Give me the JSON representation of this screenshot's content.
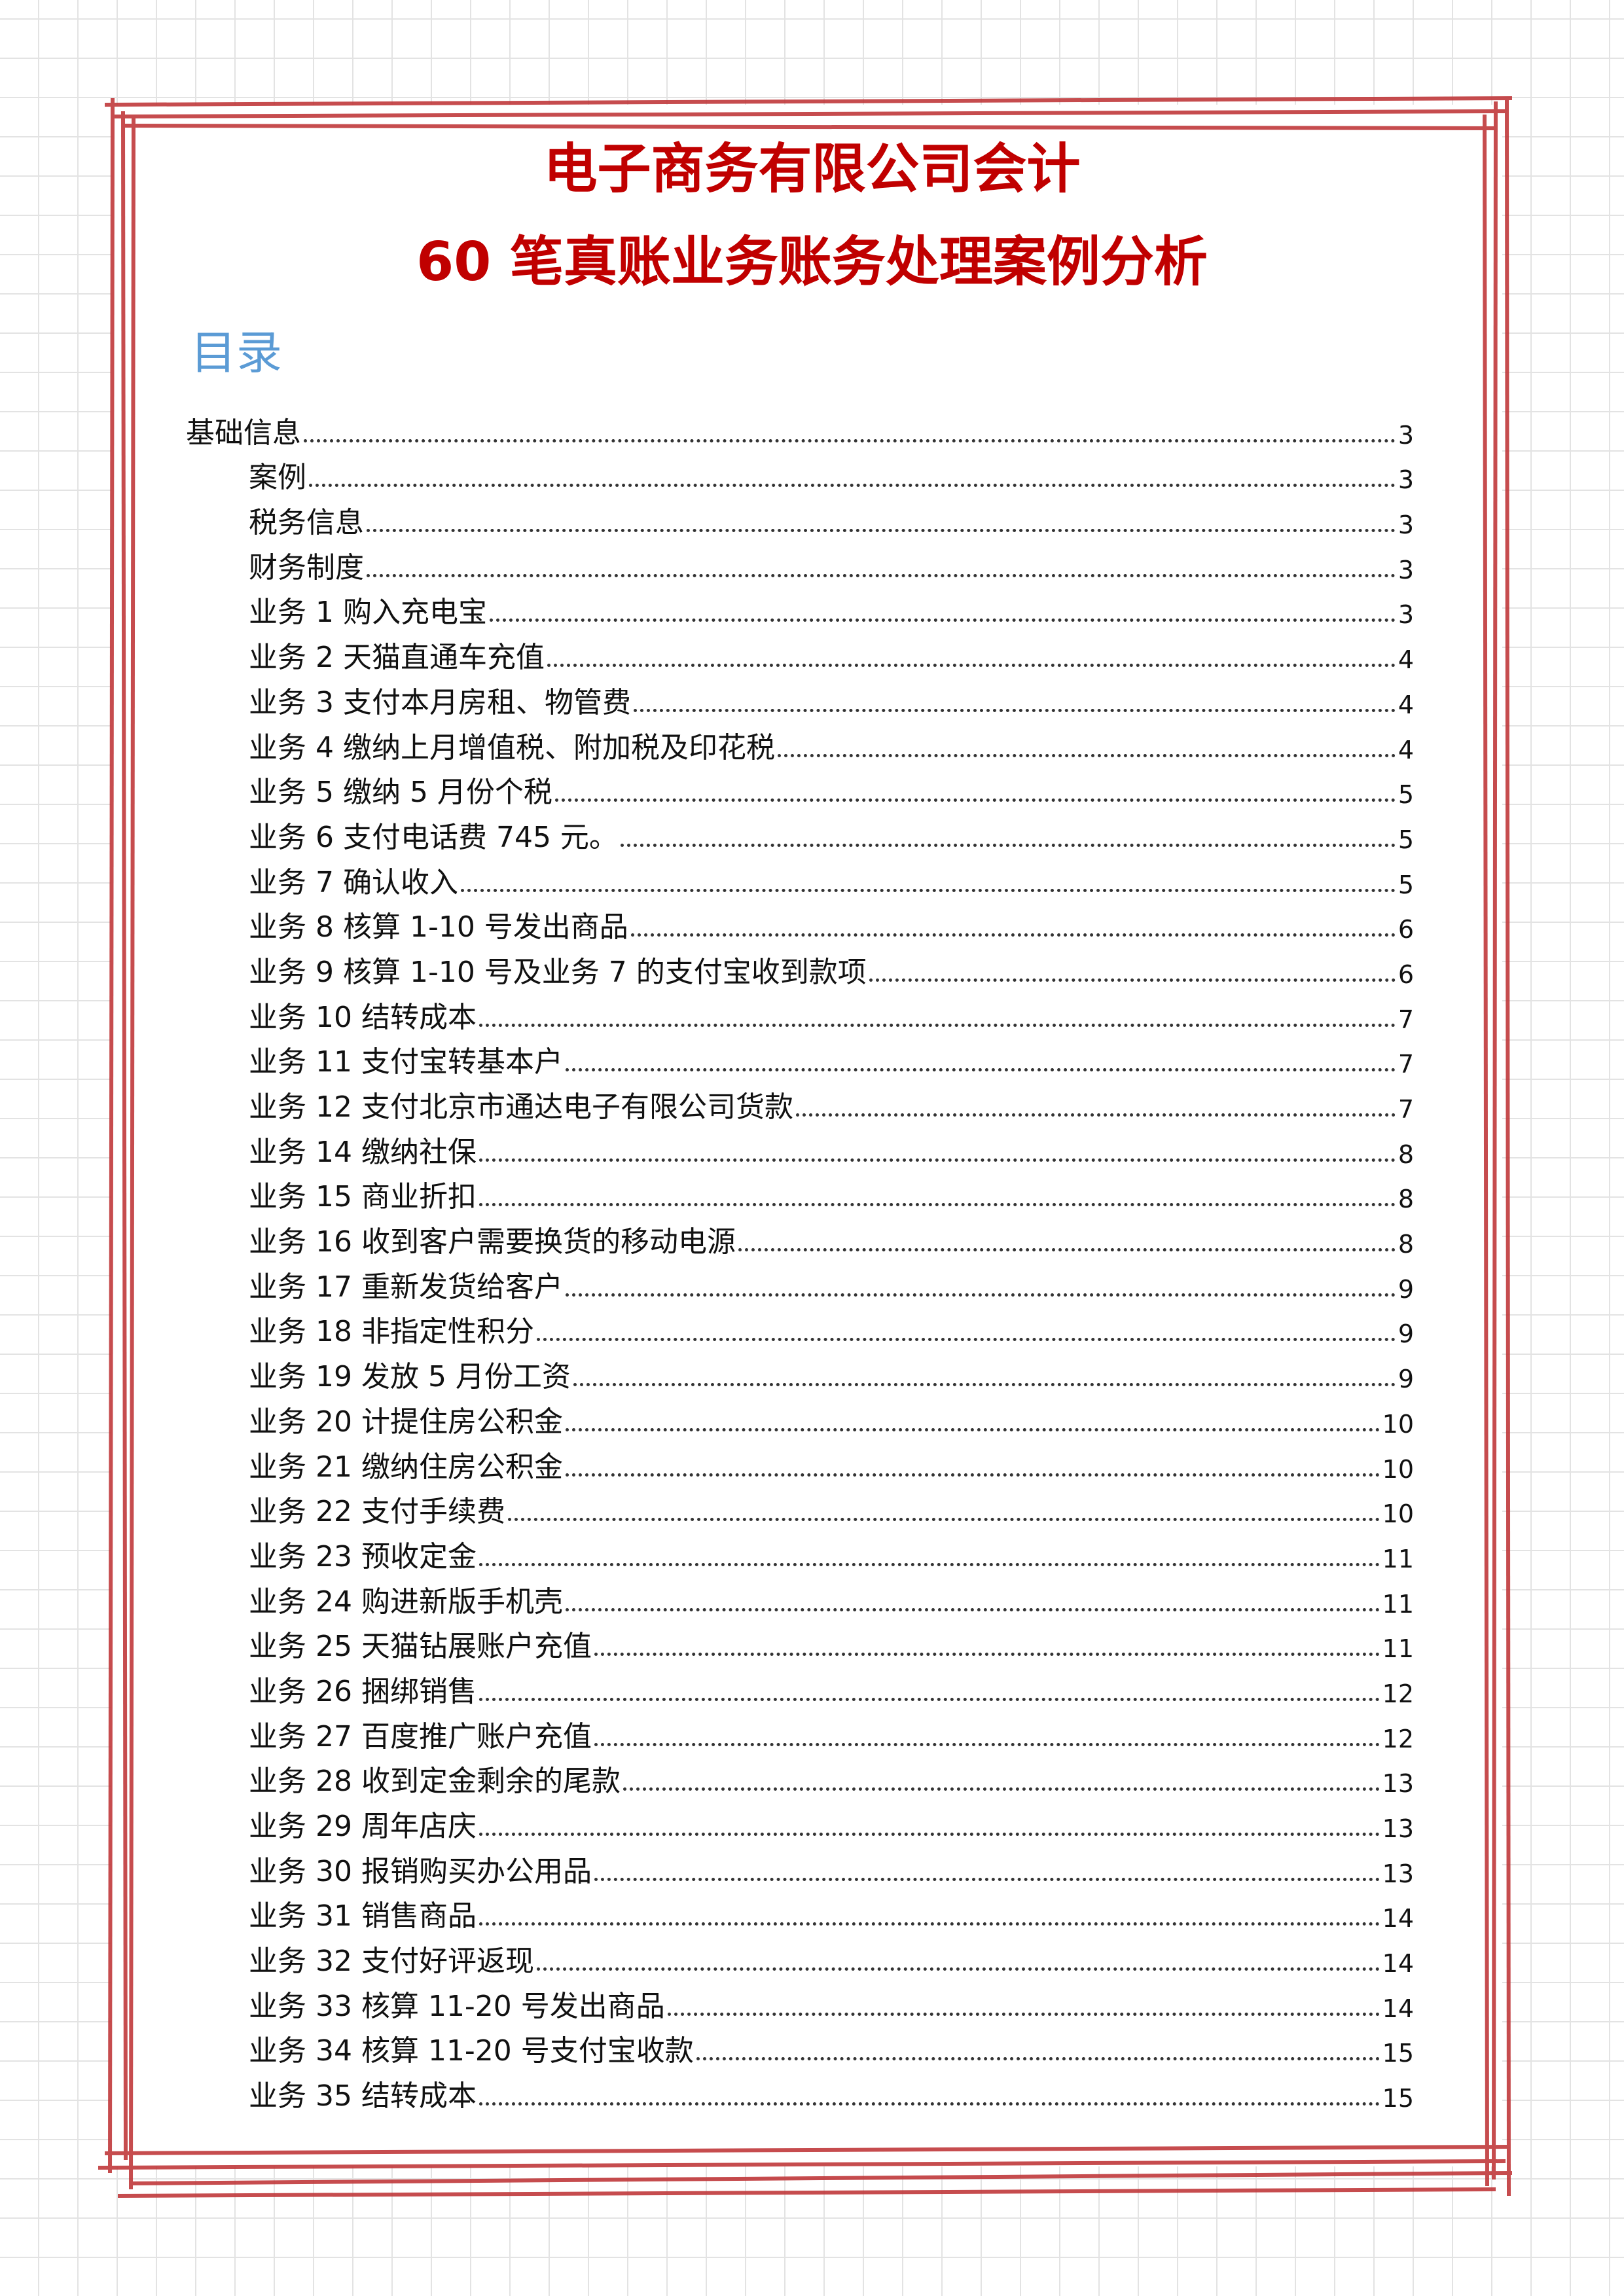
{
  "title": {
    "line1": "电子商务有限公司会计",
    "line2": "60 笔真账业务账务处理案例分析",
    "color": "#c00000"
  },
  "toc": {
    "heading": "目录",
    "heading_color": "#5b9bd5",
    "entries": [
      {
        "level": 1,
        "label": "基础信息",
        "page": "3"
      },
      {
        "level": 2,
        "label": "案例",
        "page": "3"
      },
      {
        "level": 2,
        "label": "税务信息",
        "page": "3"
      },
      {
        "level": 2,
        "label": "财务制度",
        "page": "3"
      },
      {
        "level": 2,
        "label": "业务 1 购入充电宝",
        "page": "3"
      },
      {
        "level": 2,
        "label": "业务 2 天猫直通车充值",
        "page": "4"
      },
      {
        "level": 2,
        "label": "业务 3 支付本月房租、物管费",
        "page": "4"
      },
      {
        "level": 2,
        "label": "业务 4 缴纳上月增值税、附加税及印花税",
        "page": "4"
      },
      {
        "level": 2,
        "label": "业务 5 缴纳 5 月份个税",
        "page": "5"
      },
      {
        "level": 2,
        "label": "业务 6 支付电话费 745 元。",
        "page": "5"
      },
      {
        "level": 2,
        "label": "业务 7 确认收入",
        "page": "5"
      },
      {
        "level": 2,
        "label": "业务 8 核算 1-10 号发出商品",
        "page": "6"
      },
      {
        "level": 2,
        "label": "业务 9 核算 1-10 号及业务 7 的支付宝收到款项",
        "page": "6"
      },
      {
        "level": 2,
        "label": "业务 10 结转成本",
        "page": "7"
      },
      {
        "level": 2,
        "label": "业务 11 支付宝转基本户",
        "page": "7"
      },
      {
        "level": 2,
        "label": "业务 12 支付北京市通达电子有限公司货款",
        "page": "7"
      },
      {
        "level": 2,
        "label": "业务 14 缴纳社保",
        "page": "8"
      },
      {
        "level": 2,
        "label": "业务 15 商业折扣",
        "page": "8"
      },
      {
        "level": 2,
        "label": "业务 16 收到客户需要换货的移动电源",
        "page": "8"
      },
      {
        "level": 2,
        "label": "业务 17 重新发货给客户",
        "page": "9"
      },
      {
        "level": 2,
        "label": "业务 18 非指定性积分",
        "page": "9"
      },
      {
        "level": 2,
        "label": "业务 19 发放 5 月份工资",
        "page": "9"
      },
      {
        "level": 2,
        "label": "业务 20 计提住房公积金",
        "page": "10"
      },
      {
        "level": 2,
        "label": "业务 21 缴纳住房公积金",
        "page": "10"
      },
      {
        "level": 2,
        "label": "业务 22 支付手续费",
        "page": "10"
      },
      {
        "level": 2,
        "label": "业务 23 预收定金",
        "page": "11"
      },
      {
        "level": 2,
        "label": "业务 24 购进新版手机壳",
        "page": "11"
      },
      {
        "level": 2,
        "label": "业务 25 天猫钻展账户充值",
        "page": "11"
      },
      {
        "level": 2,
        "label": "业务 26 捆绑销售",
        "page": "12"
      },
      {
        "level": 2,
        "label": "业务 27 百度推广账户充值",
        "page": "12"
      },
      {
        "level": 2,
        "label": "业务 28 收到定金剩余的尾款",
        "page": "13"
      },
      {
        "level": 2,
        "label": "业务 29 周年店庆",
        "page": "13"
      },
      {
        "level": 2,
        "label": "业务 30 报销购买办公用品",
        "page": "13"
      },
      {
        "level": 2,
        "label": "业务 31 销售商品",
        "page": "14"
      },
      {
        "level": 2,
        "label": "业务 32 支付好评返现",
        "page": "14"
      },
      {
        "level": 2,
        "label": "业务 33 核算 11-20 号发出商品",
        "page": "14"
      },
      {
        "level": 2,
        "label": "业务 34 核算 11-20 号支付宝收款",
        "page": "15"
      },
      {
        "level": 2,
        "label": "业务 35 结转成本",
        "page": "15"
      }
    ]
  },
  "frame_color": "#c0393b"
}
